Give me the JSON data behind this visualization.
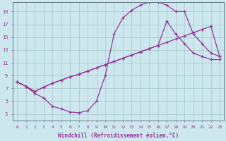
{
  "bg_color": "#cce8ee",
  "grid_color": "#aacccc",
  "line_color": "#993399",
  "xlabel": "Windchill (Refroidissement éolien,°C)",
  "x_ticks": [
    0,
    1,
    2,
    3,
    4,
    5,
    6,
    7,
    8,
    9,
    10,
    11,
    12,
    13,
    14,
    15,
    16,
    17,
    18,
    19,
    20,
    21,
    22,
    23
  ],
  "y_ticks": [
    3,
    5,
    7,
    9,
    11,
    13,
    15,
    17,
    19
  ],
  "xlim": [
    -0.5,
    23.5
  ],
  "ylim": [
    2.0,
    20.5
  ],
  "curve1_x": [
    0,
    1,
    2,
    3,
    4,
    5,
    6,
    7,
    8,
    9,
    10,
    11,
    12,
    13,
    14,
    15,
    16,
    17,
    18,
    19,
    20,
    21,
    22,
    23
  ],
  "curve1_y": [
    8.0,
    7.3,
    6.2,
    5.5,
    4.2,
    3.8,
    3.3,
    3.2,
    3.5,
    5.0,
    9.0,
    15.5,
    18.0,
    19.2,
    20.0,
    20.5,
    20.5,
    20.0,
    19.0,
    19.0,
    15.5,
    14.0,
    12.5,
    12.0
  ],
  "curve2_x": [
    0,
    1,
    2,
    3,
    4,
    5,
    6,
    7,
    8,
    9,
    10,
    11,
    12,
    13,
    14,
    15,
    16,
    17,
    18,
    19,
    20,
    21,
    22,
    23
  ],
  "curve2_y": [
    8.0,
    7.3,
    6.5,
    7.2,
    7.8,
    8.3,
    8.8,
    9.2,
    9.7,
    10.2,
    10.7,
    11.2,
    11.7,
    12.2,
    12.7,
    13.2,
    13.7,
    17.5,
    15.5,
    14.0,
    12.5,
    12.0,
    11.5,
    11.5
  ],
  "curve3_x": [
    0,
    1,
    2,
    3,
    4,
    5,
    6,
    7,
    8,
    9,
    10,
    11,
    12,
    13,
    14,
    15,
    16,
    17,
    18,
    19,
    20,
    21,
    22,
    23
  ],
  "curve3_y": [
    8.0,
    7.3,
    6.5,
    7.2,
    7.8,
    8.3,
    8.8,
    9.2,
    9.7,
    10.2,
    10.7,
    11.2,
    11.7,
    12.2,
    12.7,
    13.2,
    13.7,
    14.2,
    14.7,
    15.2,
    15.7,
    16.2,
    16.7,
    12.0
  ]
}
